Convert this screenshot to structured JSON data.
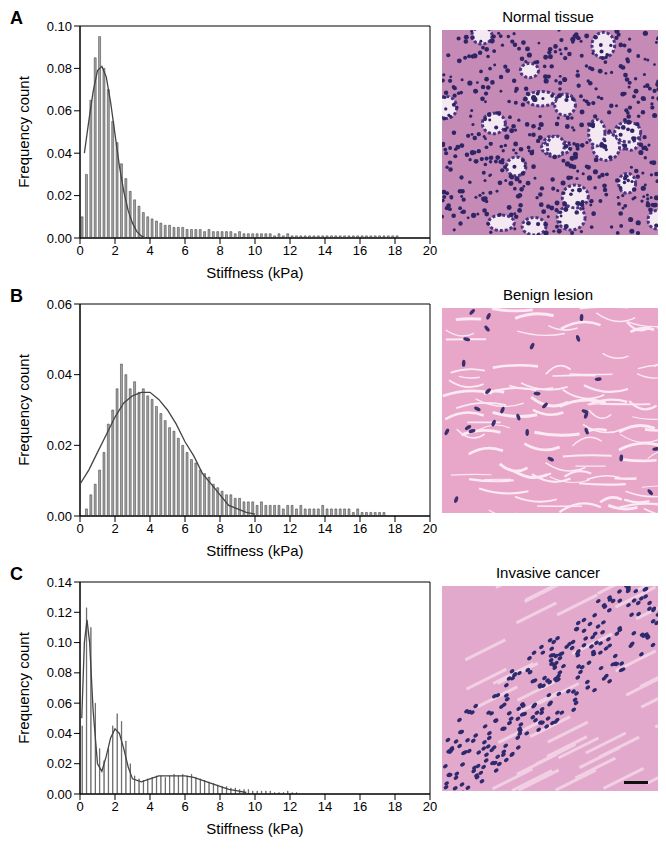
{
  "chart_data": [
    {
      "type": "histogram",
      "panel": "A",
      "title": "Normal tissue",
      "x_label": "Stiffness (kPa)",
      "y_label": "Frequency count",
      "color": "#a6a6a6",
      "grid": false,
      "bins": [
        0,
        0.25,
        0.5,
        0.75,
        1,
        1.25,
        1.5,
        1.75,
        2,
        2.25,
        2.5,
        2.75,
        3,
        3.25,
        3.5,
        3.75,
        4,
        4.25,
        4.5,
        4.75,
        5,
        5.25,
        5.5,
        5.75,
        6,
        6.25,
        6.5,
        6.75,
        7,
        7.25,
        7.5,
        7.75,
        8,
        8.25,
        8.5,
        8.75,
        9,
        9.25,
        9.5,
        9.75,
        10,
        10.25,
        10.5,
        10.75,
        11,
        11.25,
        11.5,
        11.75,
        12,
        12.25,
        12.5,
        12.75,
        13,
        13.25,
        13.5,
        13.75,
        14,
        14.25,
        14.5,
        14.75,
        15,
        15.25,
        15.5,
        15.75,
        16,
        16.25,
        16.5,
        16.75,
        17,
        17.25,
        17.5,
        17.75,
        18,
        18.25,
        18.5,
        18.75,
        19,
        19.25,
        19.5,
        19.75,
        20
      ],
      "values": [
        0.01,
        0.03,
        0.065,
        0.085,
        0.095,
        0.08,
        0.07,
        0.055,
        0.045,
        0.035,
        0.028,
        0.022,
        0.018,
        0.015,
        0.012,
        0.01,
        0.009,
        0.008,
        0.007,
        0.006,
        0.006,
        0.005,
        0.005,
        0.005,
        0.004,
        0.004,
        0.004,
        0.004,
        0.003,
        0.004,
        0.003,
        0.003,
        0.003,
        0.003,
        0.003,
        0.002,
        0.003,
        0.002,
        0.002,
        0.002,
        0.002,
        0.002,
        0.002,
        0.002,
        0.001,
        0.002,
        0.001,
        0.002,
        0.001,
        0.001,
        0.001,
        0.001,
        0.001,
        0.001,
        0.001,
        0.001,
        0.001,
        0.001,
        0.001,
        0.001,
        0.001,
        0.001,
        0.001,
        0.001,
        0.001,
        0.001,
        0.001,
        0.001,
        0.001,
        0.001,
        0.001,
        0.001,
        0.001,
        0,
        0,
        0,
        0,
        0,
        0,
        0
      ],
      "fit": {
        "x": [
          0.25,
          0.5,
          0.75,
          1,
          1.25,
          1.5,
          1.75,
          2,
          2.25,
          2.5,
          2.75,
          3,
          3.25,
          3.5,
          3.75
        ],
        "values": [
          0.04,
          0.055,
          0.069,
          0.079,
          0.081,
          0.076,
          0.064,
          0.049,
          0.034,
          0.022,
          0.013,
          0.007,
          0.003,
          0.001,
          0
        ]
      },
      "xlim": [
        0,
        20
      ],
      "xticks": [
        0,
        2,
        4,
        6,
        8,
        10,
        12,
        14,
        16,
        18,
        20
      ],
      "ylim": [
        0,
        0.1
      ],
      "yticks": [
        {
          "value": 0,
          "label": "0.00"
        },
        {
          "value": 0.02,
          "label": "0.02"
        },
        {
          "value": 0.04,
          "label": "0.04"
        },
        {
          "value": 0.06,
          "label": "0.06"
        },
        {
          "value": 0.08,
          "label": "0.08"
        },
        {
          "value": 0.1,
          "label": "0.10"
        }
      ]
    },
    {
      "type": "histogram",
      "panel": "B",
      "title": "Benign lesion",
      "x_label": "Stiffness (kPa)",
      "y_label": "Frequency count",
      "color": "#a6a6a6",
      "grid": false,
      "bins": [
        0,
        0.25,
        0.5,
        0.75,
        1,
        1.25,
        1.5,
        1.75,
        2,
        2.25,
        2.5,
        2.75,
        3,
        3.25,
        3.5,
        3.75,
        4,
        4.25,
        4.5,
        4.75,
        5,
        5.25,
        5.5,
        5.75,
        6,
        6.25,
        6.5,
        6.75,
        7,
        7.25,
        7.5,
        7.75,
        8,
        8.25,
        8.5,
        8.75,
        9,
        9.25,
        9.5,
        9.75,
        10,
        10.25,
        10.5,
        10.75,
        11,
        11.25,
        11.5,
        11.75,
        12,
        12.25,
        12.5,
        12.75,
        13,
        13.25,
        13.5,
        13.75,
        14,
        14.25,
        14.5,
        14.75,
        15,
        15.25,
        15.5,
        15.75,
        16,
        16.25,
        16.5,
        16.75,
        17,
        17.25,
        17.5,
        17.75,
        18,
        18.25,
        18.5,
        18.75,
        19,
        19.25,
        19.5,
        19.75,
        20
      ],
      "values": [
        0,
        0.002,
        0.006,
        0.009,
        0.013,
        0.018,
        0.026,
        0.03,
        0.036,
        0.043,
        0.04,
        0.036,
        0.038,
        0.035,
        0.036,
        0.034,
        0.033,
        0.031,
        0.029,
        0.027,
        0.025,
        0.024,
        0.022,
        0.02,
        0.018,
        0.016,
        0.015,
        0.013,
        0.012,
        0.011,
        0.009,
        0.008,
        0.007,
        0.006,
        0.006,
        0.005,
        0.005,
        0.004,
        0.004,
        0.004,
        0.003,
        0.004,
        0.003,
        0.003,
        0.003,
        0.003,
        0.002,
        0.003,
        0.003,
        0.002,
        0.003,
        0.002,
        0.002,
        0.002,
        0.002,
        0.003,
        0.002,
        0.002,
        0.002,
        0.002,
        0.002,
        0.002,
        0.001,
        0.002,
        0.001,
        0.001,
        0.001,
        0.001,
        0.001,
        0.001,
        0,
        0,
        0,
        0,
        0,
        0,
        0,
        0,
        0,
        0
      ],
      "fit": {
        "x": [
          0,
          0.5,
          1,
          1.5,
          2,
          2.5,
          3,
          3.5,
          4,
          4.5,
          5,
          5.5,
          6,
          6.5,
          7,
          7.5,
          8,
          8.5,
          9,
          9.5,
          10
        ],
        "values": [
          0.009,
          0.013,
          0.018,
          0.023,
          0.028,
          0.032,
          0.034,
          0.035,
          0.035,
          0.033,
          0.03,
          0.026,
          0.021,
          0.017,
          0.012,
          0.009,
          0.006,
          0.003,
          0.002,
          0.001,
          0.0005
        ]
      },
      "xlim": [
        0,
        20
      ],
      "xticks": [
        0,
        2,
        4,
        6,
        8,
        10,
        12,
        14,
        16,
        18,
        20
      ],
      "ylim": [
        0,
        0.06
      ],
      "yticks": [
        {
          "value": 0,
          "label": "0.00"
        },
        {
          "value": 0.02,
          "label": "0.02"
        },
        {
          "value": 0.04,
          "label": "0.04"
        },
        {
          "value": 0.06,
          "label": "0.06"
        }
      ]
    },
    {
      "type": "histogram",
      "panel": "C",
      "title": "Invasive cancer",
      "x_label": "Stiffness (kPa)",
      "y_label": "Frequency count",
      "color": "#a6a6a6",
      "grid": false,
      "bins": [
        0,
        0.25,
        0.5,
        0.75,
        1,
        1.25,
        1.5,
        1.75,
        2,
        2.25,
        2.5,
        2.75,
        3,
        3.25,
        3.5,
        3.75,
        4,
        4.25,
        4.5,
        4.75,
        5,
        5.25,
        5.5,
        5.75,
        6,
        6.25,
        6.5,
        6.75,
        7,
        7.25,
        7.5,
        7.75,
        8,
        8.25,
        8.5,
        8.75,
        9,
        9.25,
        9.5,
        9.75,
        10,
        10.25,
        10.5,
        10.75,
        11,
        11.25,
        11.5,
        11.75,
        12,
        12.25,
        12.5,
        12.75,
        13,
        13.25,
        13.5,
        13.75,
        14,
        14.25,
        14.5,
        14.75,
        15,
        15.25,
        15.5,
        15.75,
        16,
        16.25,
        16.5,
        16.75,
        17,
        17.25,
        17.5,
        17.75,
        18,
        18.25,
        18.5,
        18.75,
        19,
        19.25,
        19.5,
        19.75,
        20
      ],
      "values": [
        0.045,
        0.123,
        0.11,
        0.06,
        0.03,
        0.022,
        0.03,
        0.045,
        0.053,
        0.048,
        0.035,
        0.02,
        0.012,
        0.01,
        0.009,
        0.01,
        0.011,
        0.012,
        0.012,
        0.011,
        0.012,
        0.013,
        0.012,
        0.013,
        0.012,
        0.013,
        0.011,
        0.01,
        0.009,
        0.008,
        0.007,
        0.006,
        0.005,
        0.005,
        0.004,
        0.004,
        0.003,
        0.003,
        0.003,
        0.002,
        0.002,
        0.002,
        0.002,
        0.002,
        0.001,
        0.001,
        0.001,
        0.002,
        0.001,
        0.001,
        0,
        0,
        0,
        0,
        0,
        0,
        0,
        0,
        0,
        0,
        0,
        0,
        0,
        0,
        0,
        0,
        0,
        0,
        0,
        0,
        0,
        0,
        0,
        0,
        0,
        0,
        0,
        0,
        0,
        0
      ],
      "fit": {
        "x": [
          0.1,
          0.25,
          0.4,
          0.55,
          0.75,
          1,
          1.25,
          1.5,
          1.75,
          2,
          2.25,
          2.5,
          2.75,
          3,
          3.5,
          4,
          4.5,
          5,
          5.5,
          6,
          6.5,
          7,
          7.5,
          8,
          8.5,
          9,
          9.5
        ],
        "values": [
          0.05,
          0.1,
          0.115,
          0.1,
          0.055,
          0.02,
          0.015,
          0.025,
          0.037,
          0.043,
          0.04,
          0.03,
          0.018,
          0.01,
          0.008,
          0.01,
          0.012,
          0.012,
          0.012,
          0.012,
          0.011,
          0.009,
          0.007,
          0.005,
          0.003,
          0.002,
          0.001
        ]
      },
      "xlim": [
        0,
        20
      ],
      "xticks": [
        0,
        2,
        4,
        6,
        8,
        10,
        12,
        14,
        16,
        18,
        20
      ],
      "ylim": [
        0,
        0.14
      ],
      "yticks": [
        {
          "value": 0,
          "label": "0.00"
        },
        {
          "value": 0.02,
          "label": "0.02"
        },
        {
          "value": 0.04,
          "label": "0.04"
        },
        {
          "value": 0.06,
          "label": "0.06"
        },
        {
          "value": 0.08,
          "label": "0.08"
        },
        {
          "value": 0.1,
          "label": "0.10"
        },
        {
          "value": 0.12,
          "label": "0.12"
        },
        {
          "value": 0.14,
          "label": "0.14"
        }
      ]
    }
  ]
}
